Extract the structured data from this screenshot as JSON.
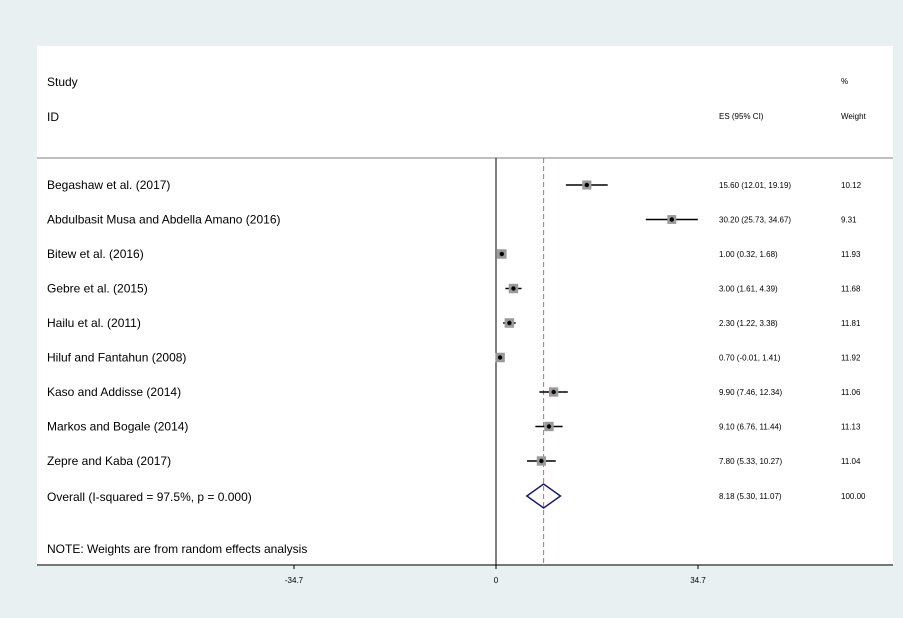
{
  "chart_data": {
    "type": "forest",
    "headers": {
      "study_line1": "Study",
      "study_line2": "ID",
      "es_header": "ES (95% CI)",
      "weight_line1": "%",
      "weight_line2": "Weight"
    },
    "studies": [
      {
        "label": "Begashaw et al. (2017)",
        "es": 15.6,
        "lo": 12.01,
        "hi": 19.19,
        "es_text": "15.60 (12.01, 19.19)",
        "weight": 10.12,
        "weight_text": "10.12"
      },
      {
        "label": "Abdulbasit Musa and Abdella Amano (2016)",
        "es": 30.2,
        "lo": 25.73,
        "hi": 34.67,
        "es_text": "30.20 (25.73, 34.67)",
        "weight": 9.31,
        "weight_text": "9.31"
      },
      {
        "label": "Bitew et al. (2016)",
        "es": 1.0,
        "lo": 0.32,
        "hi": 1.68,
        "es_text": "1.00 (0.32, 1.68)",
        "weight": 11.93,
        "weight_text": "11.93"
      },
      {
        "label": "Gebre et al. (2015)",
        "es": 3.0,
        "lo": 1.61,
        "hi": 4.39,
        "es_text": "3.00 (1.61, 4.39)",
        "weight": 11.68,
        "weight_text": "11.68"
      },
      {
        "label": "Hailu et al. (2011)",
        "es": 2.3,
        "lo": 1.22,
        "hi": 3.38,
        "es_text": "2.30 (1.22, 3.38)",
        "weight": 11.81,
        "weight_text": "11.81"
      },
      {
        "label": "Hiluf and Fantahun (2008)",
        "es": 0.7,
        "lo": -0.01,
        "hi": 1.41,
        "es_text": "0.70 (-0.01, 1.41)",
        "weight": 11.92,
        "weight_text": "11.92"
      },
      {
        "label": "Kaso and Addisse (2014)",
        "es": 9.9,
        "lo": 7.46,
        "hi": 12.34,
        "es_text": "9.90 (7.46, 12.34)",
        "weight": 11.06,
        "weight_text": "11.06"
      },
      {
        "label": "Markos and Bogale (2014)",
        "es": 9.1,
        "lo": 6.76,
        "hi": 11.44,
        "es_text": "9.10 (6.76, 11.44)",
        "weight": 11.13,
        "weight_text": "11.13"
      },
      {
        "label": "Zepre and Kaba (2017)",
        "es": 7.8,
        "lo": 5.33,
        "hi": 10.27,
        "es_text": "7.80 (5.33, 10.27)",
        "weight": 11.04,
        "weight_text": "11.04"
      }
    ],
    "overall": {
      "label": "Overall  (I-squared = 97.5%, p = 0.000)",
      "es": 8.18,
      "lo": 5.3,
      "hi": 11.07,
      "es_text": "8.18 (5.30, 11.07)",
      "weight_text": "100.00"
    },
    "note": "NOTE: Weights are from random effects analysis",
    "x_ticks": [
      {
        "value": -34.7,
        "label": "-34.7"
      },
      {
        "value": 0,
        "label": "0"
      },
      {
        "value": 34.7,
        "label": "34.7"
      }
    ],
    "null_value": 0,
    "colors": {
      "point": "#000000",
      "box": "#9a9a9a",
      "diamond": "#1a1a6e",
      "overall_line": "#b07070"
    }
  }
}
